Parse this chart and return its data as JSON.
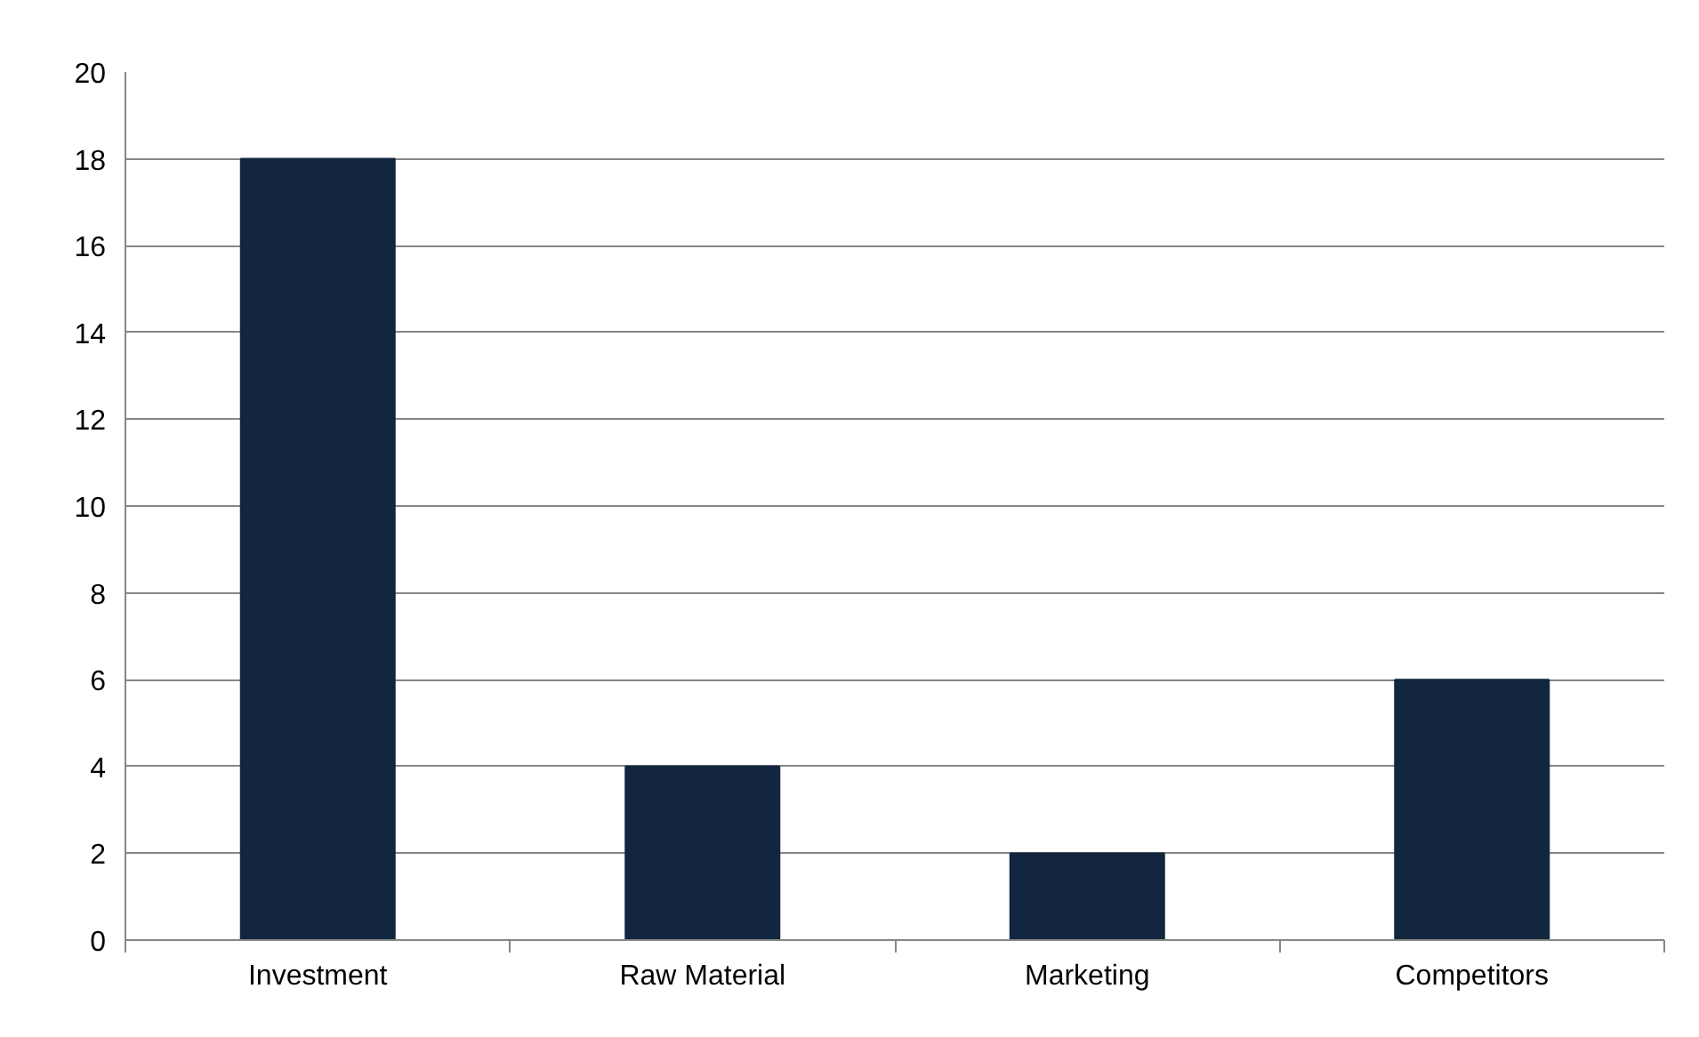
{
  "chart_data": {
    "type": "bar",
    "categories": [
      "Investment",
      "Raw Material",
      "Marketing",
      "Competitors"
    ],
    "values": [
      18,
      4,
      2,
      6
    ],
    "color": "#12263f",
    "ylim": [
      0,
      20
    ],
    "yticks": [
      0,
      2,
      4,
      6,
      8,
      10,
      12,
      14,
      16,
      18,
      20
    ],
    "grid": "y"
  }
}
